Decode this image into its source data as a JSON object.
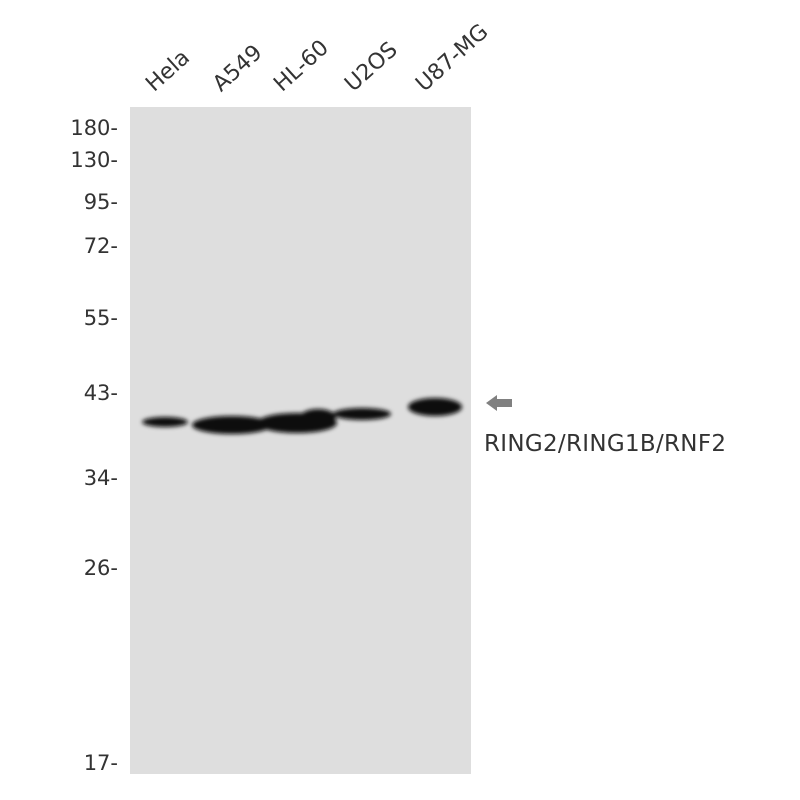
{
  "lanes": [
    "Hela",
    "A549",
    "HL-60",
    "U2OS",
    "U87-MG"
  ],
  "markers": [
    "180-",
    "130-",
    "95-",
    "72-",
    "55-",
    "43-",
    "34-",
    "26-",
    "17-"
  ],
  "target": {
    "label": "RING2/RING1B/RNF2",
    "arrow_icon": "arrow-left-icon",
    "arrow_color": "#808080"
  },
  "colors": {
    "membrane": "#dedede",
    "band": "#0a0a0a"
  }
}
